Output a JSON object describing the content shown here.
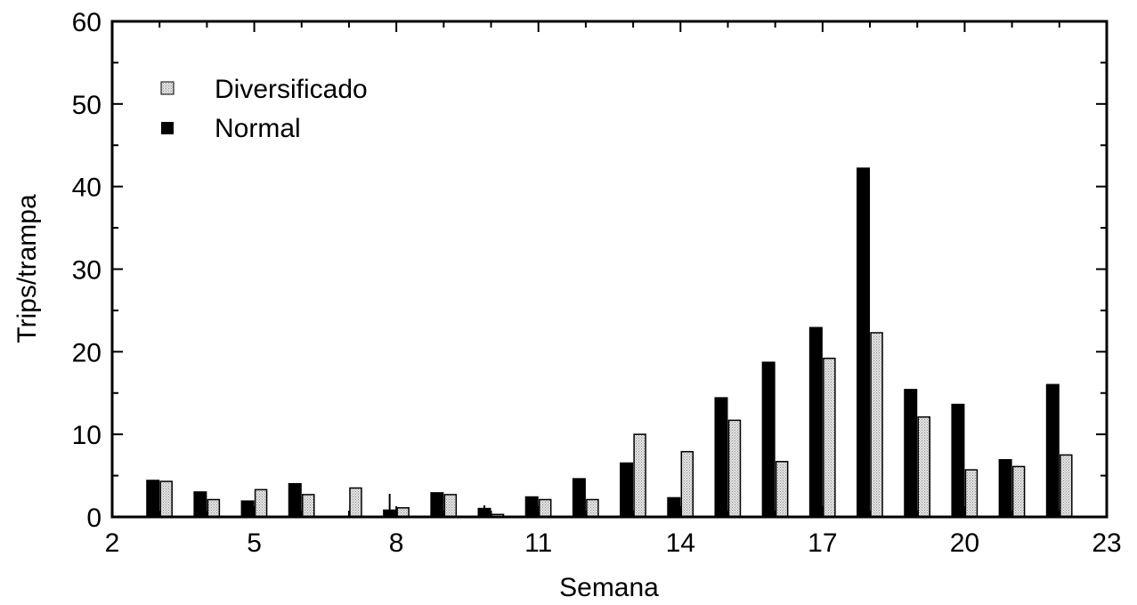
{
  "colors": {
    "normal": "#000000",
    "diversificado_fill": "#d9d9d9",
    "diversificado_stroke": "#000000",
    "axis": "#000000"
  },
  "chart_data": {
    "type": "bar",
    "xlabel": "Semana",
    "ylabel": "Trips/trampa",
    "xlim": [
      2,
      23
    ],
    "ylim": [
      0,
      60
    ],
    "xticks": [
      2,
      5,
      8,
      11,
      14,
      17,
      20,
      23
    ],
    "yticks": [
      0,
      10,
      20,
      30,
      40,
      50,
      60
    ],
    "x_tick_labels": [
      "2",
      "5",
      "8",
      "11",
      "14",
      "17",
      "20",
      "23"
    ],
    "y_tick_labels": [
      "0",
      "10",
      "20",
      "30",
      "40",
      "50",
      "60"
    ],
    "grid": false,
    "legend_position": "top-left",
    "x": [
      3,
      4,
      5,
      6,
      7,
      8,
      9,
      10,
      11,
      12,
      13,
      14,
      15,
      16,
      17,
      18,
      19,
      20,
      21,
      22
    ],
    "series": [
      {
        "name": "Diversificado",
        "values": [
          4.3,
          2.1,
          3.3,
          2.7,
          3.5,
          1.1,
          2.7,
          0.3,
          2.1,
          2.1,
          10.0,
          7.9,
          11.7,
          6.7,
          19.2,
          22.3,
          12.1,
          5.7,
          6.1,
          7.5
        ]
      },
      {
        "name": "Normal",
        "values": [
          4.5,
          3.1,
          2.0,
          4.1,
          0,
          0.9,
          3.0,
          1.1,
          2.5,
          4.7,
          6.6,
          2.4,
          14.5,
          18.8,
          23.0,
          42.3,
          15.5,
          13.7,
          7.0,
          16.1
        ]
      }
    ],
    "error_bars": [
      {
        "x": 8,
        "series": "Normal",
        "upper": 2.8
      },
      {
        "x": 10,
        "series": "Normal",
        "upper": 1.4
      }
    ]
  }
}
